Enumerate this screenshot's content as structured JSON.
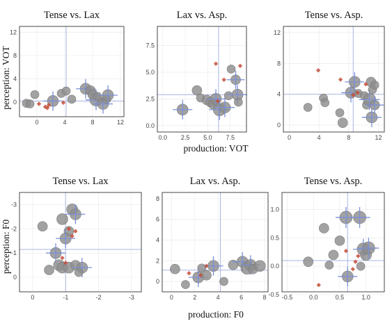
{
  "figure": {
    "row_xlabels": [
      "production: VOT",
      "production: F0"
    ],
    "row_ylabels": [
      "perception: VOT",
      "perception: F0"
    ],
    "colors": {
      "bubble": "#8e8e8e",
      "bubble_stroke": "#7a7a7a",
      "crosshair": "#7b8fd6",
      "red_point": "#c44e3a",
      "refline": "#aab4e6"
    }
  },
  "chart_data": [
    {
      "type": "scatter",
      "row": 0,
      "col": 0,
      "title": "Tense vs. Lax",
      "xlim": [
        -2.5,
        12.5
      ],
      "ylim": [
        -2.5,
        13
      ],
      "xticks": [
        0,
        4,
        8,
        12
      ],
      "yticks": [
        0,
        4,
        8,
        12
      ],
      "xticklabels": [
        "0",
        "4",
        "8",
        "12"
      ],
      "yticklabels": [
        "0",
        "4",
        "8",
        "12"
      ],
      "ref_x": 4.2,
      "ref_y": 0.2,
      "bubbles": [
        {
          "x": -1.5,
          "y": -0.2,
          "r": 6,
          "cross": false
        },
        {
          "x": -1.0,
          "y": -0.3,
          "r": 6,
          "cross": false
        },
        {
          "x": -0.3,
          "y": 1.3,
          "r": 6,
          "cross": false
        },
        {
          "x": 2.3,
          "y": 0.2,
          "r": 8,
          "cross": true
        },
        {
          "x": 3.5,
          "y": 1.5,
          "r": 6,
          "cross": false
        },
        {
          "x": 4.2,
          "y": 1.9,
          "r": 6,
          "cross": false
        },
        {
          "x": 5.0,
          "y": 0.5,
          "r": 6,
          "cross": false
        },
        {
          "x": 7.0,
          "y": 2.3,
          "r": 8,
          "cross": true
        },
        {
          "x": 7.7,
          "y": 2.0,
          "r": 7,
          "cross": false
        },
        {
          "x": 8.0,
          "y": 1.3,
          "r": 7,
          "cross": false
        },
        {
          "x": 8.5,
          "y": 0.4,
          "r": 9,
          "cross": true
        },
        {
          "x": 8.7,
          "y": 1.0,
          "r": 6,
          "cross": false
        },
        {
          "x": 9.5,
          "y": -0.3,
          "r": 8,
          "cross": true
        },
        {
          "x": 10.0,
          "y": 0.5,
          "r": 6,
          "cross": false
        },
        {
          "x": 10.2,
          "y": 1.2,
          "r": 8,
          "cross": true
        }
      ],
      "red_points": [
        {
          "x": 0.3,
          "y": -0.3
        },
        {
          "x": 1.2,
          "y": -0.8
        },
        {
          "x": 1.5,
          "y": -1.0
        },
        {
          "x": 1.7,
          "y": -0.5
        },
        {
          "x": 3.8,
          "y": -0.1
        }
      ]
    },
    {
      "type": "scatter",
      "row": 0,
      "col": 1,
      "title": "Lax vs. Asp.",
      "xlim": [
        -0.6,
        9.3
      ],
      "ylim": [
        -0.6,
        9.3
      ],
      "xticks": [
        0,
        2.5,
        5,
        7.5
      ],
      "yticks": [
        0,
        2.5,
        5,
        7.5
      ],
      "xticklabels": [
        "0.0",
        "2.5",
        "5.0",
        "7.5"
      ],
      "yticklabels": [
        "0.0",
        "2.5",
        "5.0",
        "7.5"
      ],
      "ref_x": 6.2,
      "ref_y": 2.9,
      "bubbles": [
        {
          "x": 2.2,
          "y": 1.5,
          "r": 8,
          "cross": true
        },
        {
          "x": 3.8,
          "y": 3.3,
          "r": 7,
          "cross": false
        },
        {
          "x": 4.2,
          "y": 2.6,
          "r": 6,
          "cross": false
        },
        {
          "x": 4.9,
          "y": 2.4,
          "r": 7,
          "cross": false
        },
        {
          "x": 5.3,
          "y": 2.2,
          "r": 7,
          "cross": false
        },
        {
          "x": 5.6,
          "y": 2.0,
          "r": 7,
          "cross": false
        },
        {
          "x": 5.9,
          "y": 2.5,
          "r": 8,
          "cross": true
        },
        {
          "x": 6.3,
          "y": 1.5,
          "r": 9,
          "cross": true
        },
        {
          "x": 6.9,
          "y": 1.7,
          "r": 8,
          "cross": true
        },
        {
          "x": 7.3,
          "y": 2.8,
          "r": 6,
          "cross": false
        },
        {
          "x": 7.6,
          "y": 5.3,
          "r": 6,
          "cross": false
        },
        {
          "x": 8.1,
          "y": 4.3,
          "r": 7,
          "cross": true
        },
        {
          "x": 8.3,
          "y": 2.9,
          "r": 8,
          "cross": true
        },
        {
          "x": 8.4,
          "y": 2.2,
          "r": 6,
          "cross": false
        }
      ],
      "red_points": [
        {
          "x": 5.9,
          "y": 5.8
        },
        {
          "x": 6.8,
          "y": 4.3
        },
        {
          "x": 8.6,
          "y": 5.6
        },
        {
          "x": 6.1,
          "y": 2.3
        }
      ]
    },
    {
      "type": "scatter",
      "row": 0,
      "col": 2,
      "title": "Tense vs. Asp.",
      "xlim": [
        -0.8,
        12.8
      ],
      "ylim": [
        -0.9,
        12.8
      ],
      "xticks": [
        0,
        4,
        8,
        12
      ],
      "yticks": [
        0,
        4,
        8,
        12
      ],
      "xticklabels": [
        "0",
        "4",
        "8",
        "12"
      ],
      "yticklabels": [
        "0",
        "4",
        "8",
        "12"
      ],
      "ref_x": 8.6,
      "ref_y": 4.0,
      "bubbles": [
        {
          "x": 2.5,
          "y": 2.3,
          "r": 6,
          "cross": false
        },
        {
          "x": 4.6,
          "y": 3.5,
          "r": 6,
          "cross": false
        },
        {
          "x": 4.8,
          "y": 2.9,
          "r": 6,
          "cross": false
        },
        {
          "x": 6.8,
          "y": 1.6,
          "r": 6,
          "cross": false
        },
        {
          "x": 7.2,
          "y": 0.3,
          "r": 7,
          "cross": false
        },
        {
          "x": 8.3,
          "y": 4.2,
          "r": 8,
          "cross": true
        },
        {
          "x": 8.8,
          "y": 5.6,
          "r": 8,
          "cross": true
        },
        {
          "x": 9.3,
          "y": 4.1,
          "r": 6,
          "cross": false
        },
        {
          "x": 10.1,
          "y": 3.8,
          "r": 6,
          "cross": false
        },
        {
          "x": 10.4,
          "y": 2.6,
          "r": 6,
          "cross": false
        },
        {
          "x": 10.8,
          "y": 3.3,
          "r": 9,
          "cross": true
        },
        {
          "x": 11.0,
          "y": 5.6,
          "r": 7,
          "cross": false
        },
        {
          "x": 11.2,
          "y": 4.6,
          "r": 6,
          "cross": false
        },
        {
          "x": 11.1,
          "y": 1.0,
          "r": 8,
          "cross": true
        },
        {
          "x": 11.5,
          "y": 2.6,
          "r": 7,
          "cross": true
        },
        {
          "x": 11.5,
          "y": 5.2,
          "r": 6,
          "cross": false
        }
      ],
      "red_points": [
        {
          "x": 3.9,
          "y": 7.1
        },
        {
          "x": 6.9,
          "y": 5.9
        },
        {
          "x": 8.6,
          "y": 3.9
        },
        {
          "x": 10.3,
          "y": 5.3
        },
        {
          "x": 9.2,
          "y": 4.2
        }
      ]
    },
    {
      "type": "scatter",
      "row": 1,
      "col": 0,
      "title": "Tense vs. Lax",
      "xlim": [
        0.4,
        -3.3
      ],
      "ylim": [
        0.6,
        -3.5
      ],
      "xticks": [
        0,
        -1,
        -2,
        -3
      ],
      "yticks": [
        0,
        -1,
        -2,
        -3
      ],
      "xticklabels": [
        "0",
        "-1",
        "-2",
        "-3"
      ],
      "yticklabels": [
        "0",
        "-1",
        "-2",
        "-3"
      ],
      "ref_x": -1.0,
      "ref_y": -1.15,
      "bubbles": [
        {
          "x": -0.3,
          "y": -2.1,
          "r": 7,
          "cross": false
        },
        {
          "x": -0.9,
          "y": -2.4,
          "r": 8,
          "cross": false
        },
        {
          "x": -1.2,
          "y": -2.8,
          "r": 8,
          "cross": false
        },
        {
          "x": -1.3,
          "y": -2.6,
          "r": 8,
          "cross": true
        },
        {
          "x": -1.1,
          "y": -1.9,
          "r": 7,
          "cross": false
        },
        {
          "x": -1.0,
          "y": -1.6,
          "r": 8,
          "cross": true
        },
        {
          "x": -0.7,
          "y": -1.0,
          "r": 8,
          "cross": true
        },
        {
          "x": -0.8,
          "y": -0.5,
          "r": 8,
          "cross": false
        },
        {
          "x": -0.5,
          "y": -0.3,
          "r": 7,
          "cross": false
        },
        {
          "x": -0.9,
          "y": -0.4,
          "r": 8,
          "cross": false
        },
        {
          "x": -1.1,
          "y": -0.4,
          "r": 8,
          "cross": false
        },
        {
          "x": -1.3,
          "y": -0.5,
          "r": 7,
          "cross": false
        },
        {
          "x": -1.5,
          "y": -0.4,
          "r": 8,
          "cross": true
        },
        {
          "x": -1.4,
          "y": -0.2,
          "r": 6,
          "cross": false
        }
      ],
      "red_points": [
        {
          "x": -1.1,
          "y": -2.0
        },
        {
          "x": -1.3,
          "y": -1.9
        },
        {
          "x": -1.2,
          "y": -1.7
        },
        {
          "x": -0.9,
          "y": -0.8
        },
        {
          "x": -1.0,
          "y": -0.6
        }
      ]
    },
    {
      "type": "scatter",
      "row": 1,
      "col": 1,
      "title": "Lax vs. Asp.",
      "xlim": [
        -0.8,
        8.3
      ],
      "ylim": [
        -1.0,
        8.6
      ],
      "xticks": [
        0,
        2,
        4,
        6,
        8
      ],
      "yticks": [
        0,
        2,
        4,
        6,
        8
      ],
      "xticklabels": [
        "0",
        "2",
        "4",
        "6",
        "8"
      ],
      "yticklabels": [
        "0",
        "2",
        "4",
        "6",
        "8"
      ],
      "ref_x": 4.2,
      "ref_y": 1.1,
      "bubbles": [
        {
          "x": 0.3,
          "y": 1.2,
          "r": 7,
          "cross": false
        },
        {
          "x": 1.2,
          "y": -0.3,
          "r": 6,
          "cross": false
        },
        {
          "x": 2.3,
          "y": 0.4,
          "r": 8,
          "cross": true
        },
        {
          "x": 2.6,
          "y": 1.3,
          "r": 6,
          "cross": false
        },
        {
          "x": 3.0,
          "y": 0.6,
          "r": 7,
          "cross": false
        },
        {
          "x": 3.6,
          "y": 1.5,
          "r": 8,
          "cross": true
        },
        {
          "x": 4.5,
          "y": 0.0,
          "r": 6,
          "cross": false
        },
        {
          "x": 5.3,
          "y": 1.6,
          "r": 7,
          "cross": false
        },
        {
          "x": 6.1,
          "y": 1.9,
          "r": 8,
          "cross": true
        },
        {
          "x": 6.5,
          "y": 1.3,
          "r": 9,
          "cross": false
        },
        {
          "x": 6.8,
          "y": 1.6,
          "r": 8,
          "cross": true
        },
        {
          "x": 7.0,
          "y": 1.2,
          "r": 7,
          "cross": false
        },
        {
          "x": 7.6,
          "y": 1.5,
          "r": 8,
          "cross": false
        }
      ],
      "red_points": [
        {
          "x": 1.5,
          "y": 0.8
        },
        {
          "x": 2.5,
          "y": 0.6
        },
        {
          "x": 3.0,
          "y": 1.5
        }
      ]
    },
    {
      "type": "scatter",
      "row": 1,
      "col": 2,
      "title": "Tense vs. Asp.",
      "xlim": [
        -0.6,
        1.35
      ],
      "ylim": [
        -0.45,
        1.3
      ],
      "xticks": [
        -0.5,
        0,
        0.5,
        1
      ],
      "yticks": [
        -0.5,
        0,
        0.5,
        1
      ],
      "xticklabels": [
        "-0.5",
        "0.0",
        "0.5",
        "1.0"
      ],
      "yticklabels": [
        "-0.5",
        "0.0",
        "0.5",
        "1.0"
      ],
      "ref_x": 0.65,
      "ref_y": 0.1,
      "bubbles": [
        {
          "x": -0.1,
          "y": 0.08,
          "r": 7,
          "cross": false
        },
        {
          "x": 0.2,
          "y": 0.67,
          "r": 7,
          "cross": false
        },
        {
          "x": 0.3,
          "y": 0.02,
          "r": 6,
          "cross": false
        },
        {
          "x": 0.38,
          "y": 0.2,
          "r": 7,
          "cross": false
        },
        {
          "x": 0.5,
          "y": 0.45,
          "r": 7,
          "cross": false
        },
        {
          "x": 0.62,
          "y": 0.86,
          "r": 9,
          "cross": true
        },
        {
          "x": 0.65,
          "y": -0.18,
          "r": 8,
          "cross": true
        },
        {
          "x": 0.88,
          "y": 0.86,
          "r": 9,
          "cross": true
        },
        {
          "x": 0.9,
          "y": 0.0,
          "r": 6,
          "cross": false
        },
        {
          "x": 0.95,
          "y": 0.3,
          "r": 9,
          "cross": true
        },
        {
          "x": 1.0,
          "y": 0.2,
          "r": 8,
          "cross": false
        },
        {
          "x": 1.05,
          "y": 0.32,
          "r": 9,
          "cross": true
        }
      ],
      "red_points": [
        {
          "x": 0.1,
          "y": -0.33
        },
        {
          "x": 0.62,
          "y": 0.27
        },
        {
          "x": 0.8,
          "y": 0.08
        },
        {
          "x": 0.85,
          "y": 0.18
        },
        {
          "x": 0.75,
          "y": -0.05
        }
      ]
    }
  ]
}
